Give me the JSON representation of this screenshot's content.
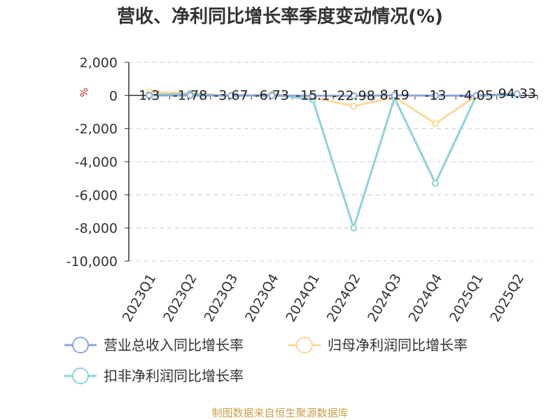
{
  "title": "营收、净利同比增长率季度变动情况(%)",
  "unit_label": "%",
  "source": "制图数据来自恒生聚源数据库",
  "colors": {
    "revenue": "#8fa8d6",
    "net_profit": "#fbd99c",
    "deducted_net_profit": "#8dd3d8",
    "unit": "#cc2222",
    "source": "#c8a24a",
    "grid": "#cccccc",
    "axis": "#333333"
  },
  "chart_data": {
    "type": "line",
    "title": "营收、净利同比增长率季度变动情况(%)",
    "ylabel": "%",
    "ylim": [
      -10000,
      2000
    ],
    "yticks": [
      2000,
      0,
      -2000,
      -4000,
      -6000,
      -8000,
      -10000
    ],
    "ytick_labels": [
      "2,000",
      "0",
      "-2,000",
      "-4,000",
      "-6,000",
      "-8,000",
      "-10,000"
    ],
    "categories": [
      "2023Q1",
      "2023Q2",
      "2023Q3",
      "2023Q4",
      "2024Q1",
      "2024Q2",
      "2024Q3",
      "2024Q4",
      "2025Q1",
      "2025Q2"
    ],
    "grid": true,
    "legend_position": "bottom",
    "series": [
      {
        "name": "营业总收入同比增长率",
        "values": [
          1.3,
          -1.78,
          -3.67,
          -6.73,
          -15.1,
          -22.98,
          8.19,
          -13,
          -4.05,
          94.33
        ],
        "labels": [
          "1.3",
          "-1.78",
          "-3.67",
          "-6.73",
          "-15.1",
          "-22.98",
          "8.19",
          "-13",
          "-4.05",
          "94.33"
        ]
      },
      {
        "name": "归母净利润同比增长率",
        "values": [
          200,
          130,
          -20,
          60,
          -120,
          -650,
          -100,
          -1700,
          -20,
          60
        ]
      },
      {
        "name": "扣非净利润同比增长率",
        "values": [
          30,
          80,
          -30,
          40,
          -250,
          -8000,
          -150,
          -5300,
          -20,
          30
        ]
      }
    ]
  }
}
